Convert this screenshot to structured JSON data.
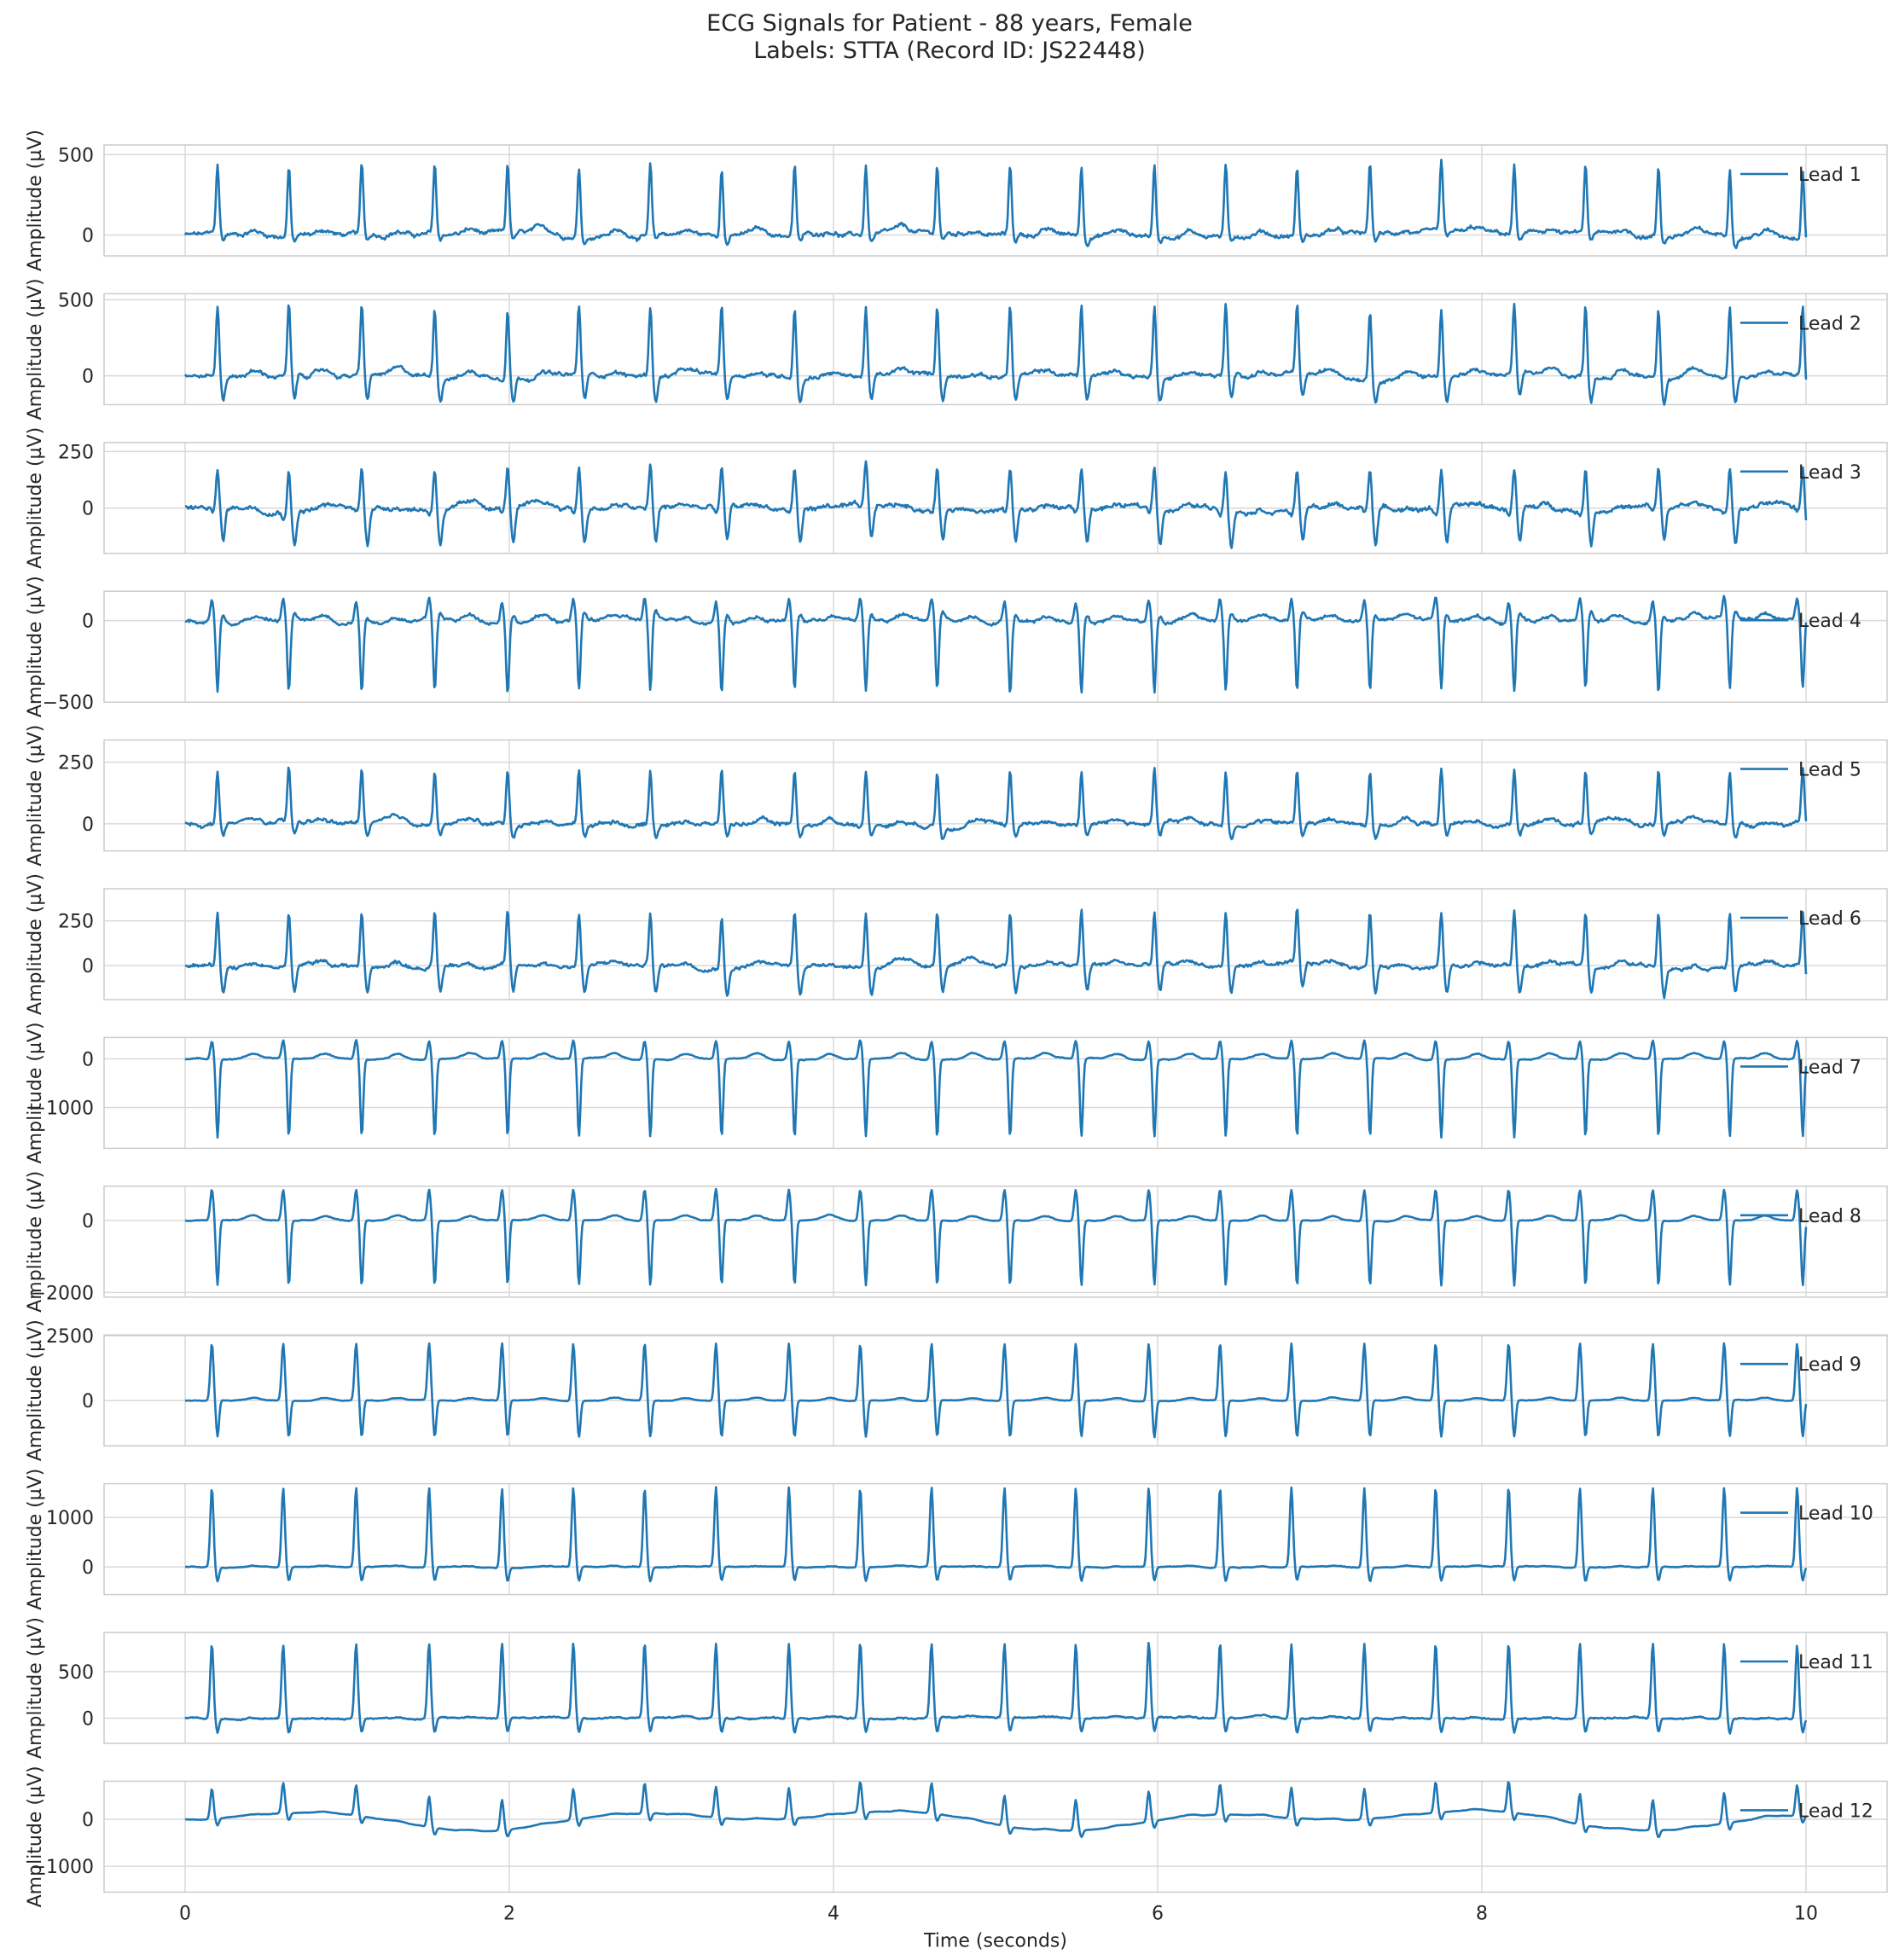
{
  "chart_data": {
    "type": "line",
    "title_line1": "ECG Signals for Patient - 88 years, Female",
    "title_line2": "Labels: STTA (Record ID: JS22448)",
    "xlabel": "Time (seconds)",
    "ylabel": "Amplitude (µV)",
    "xlim": [
      -0.5,
      10.5
    ],
    "xticks": [
      0,
      2,
      4,
      6,
      8,
      10
    ],
    "grid": true,
    "legend_position": "upper right",
    "line_color": "#1f77b4",
    "duration_seconds": 10,
    "r_peak_times": [
      0.2,
      0.64,
      1.09,
      1.54,
      1.99,
      2.43,
      2.87,
      3.31,
      3.76,
      4.2,
      4.64,
      5.09,
      5.53,
      5.98,
      6.42,
      6.86,
      7.31,
      7.75,
      8.2,
      8.64,
      9.09,
      9.53,
      9.98
    ],
    "leads": [
      {
        "name": "Lead 1",
        "ylim": [
          -130,
          560
        ],
        "yticks": [
          0,
          500
        ],
        "qrs": [
          0,
          430,
          -40
        ],
        "noise": 25
      },
      {
        "name": "Lead 2",
        "ylim": [
          -190,
          540
        ],
        "yticks": [
          0,
          500
        ],
        "qrs": [
          0,
          460,
          -160
        ],
        "noise": 25
      },
      {
        "name": "Lead 3",
        "ylim": [
          -200,
          290
        ],
        "yticks": [
          0,
          250
        ],
        "qrs": [
          -20,
          180,
          -150
        ],
        "noise": 20
      },
      {
        "name": "Lead 4",
        "ylim": [
          -500,
          180
        ],
        "yticks": [
          -500,
          0
        ],
        "qrs": [
          130,
          -430,
          40
        ],
        "noise": 20
      },
      {
        "name": "Lead 5",
        "ylim": [
          -110,
          340
        ],
        "yticks": [
          0,
          250
        ],
        "qrs": [
          0,
          220,
          -50
        ],
        "noise": 15
      },
      {
        "name": "Lead 6",
        "ylim": [
          -190,
          430
        ],
        "yticks": [
          0,
          250
        ],
        "qrs": [
          0,
          300,
          -150
        ],
        "noise": 20
      },
      {
        "name": "Lead 7",
        "ylim": [
          -1840,
          440
        ],
        "yticks": [
          -1000,
          0
        ],
        "qrs": [
          370,
          -1600,
          0
        ],
        "noise": 20
      },
      {
        "name": "Lead 8",
        "ylim": [
          -2130,
          950
        ],
        "yticks": [
          -2000,
          0
        ],
        "qrs": [
          850,
          -1800,
          0
        ],
        "noise": 20
      },
      {
        "name": "Lead 9",
        "ylim": [
          -1750,
          2530
        ],
        "yticks": [
          0,
          2500
        ],
        "qrs": [
          2200,
          -1400,
          0
        ],
        "noise": 20
      },
      {
        "name": "Lead 10",
        "ylim": [
          -560,
          1680
        ],
        "yticks": [
          0,
          1000
        ],
        "qrs": [
          1600,
          -280,
          0
        ],
        "noise": 15
      },
      {
        "name": "Lead 11",
        "ylim": [
          -270,
          920
        ],
        "yticks": [
          0,
          500
        ],
        "qrs": [
          800,
          -150,
          0
        ],
        "noise": 15
      },
      {
        "name": "Lead 12",
        "ylim": [
          -1550,
          810
        ],
        "yticks": [
          -1000,
          0
        ],
        "qrs": [
          650,
          -150,
          0
        ],
        "noise": 10
      }
    ]
  }
}
